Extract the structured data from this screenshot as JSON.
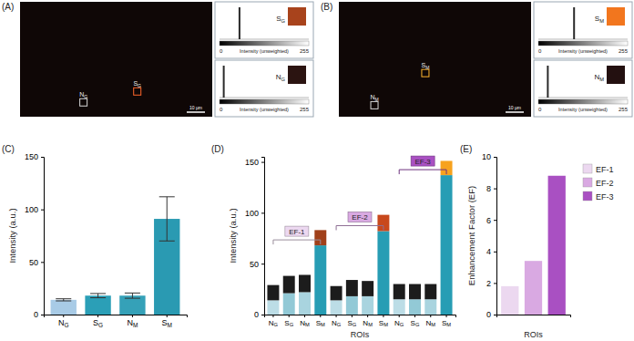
{
  "image_panels": [
    {
      "label": "(A)",
      "scale_bar": "10 µm",
      "histogram_axis": {
        "title": "Intensity (unweighted)",
        "xlim": [
          0,
          255
        ],
        "xticks": [
          0,
          255
        ]
      },
      "rois": [
        {
          "name": "SG",
          "color": "#a8431c",
          "peak": 57
        },
        {
          "name": "NG",
          "color": "#2b1411",
          "peak": 12
        }
      ]
    },
    {
      "label": "(B)",
      "scale_bar": "10 µm",
      "histogram_axis": {
        "title": "Intensity (unweighted)",
        "xlim": [
          0,
          255
        ],
        "xticks": [
          0,
          255
        ]
      },
      "rois": [
        {
          "name": "SM",
          "color": "#f2761e",
          "peak": 102
        },
        {
          "name": "NM",
          "color": "#231010",
          "peak": 27
        }
      ]
    }
  ],
  "chart_data": [
    {
      "type": "bar",
      "title": "(C)",
      "y_label": "Intensity (a.u.)",
      "categories": [
        "NG",
        "SG",
        "NM",
        "SM"
      ],
      "values": [
        14,
        18,
        18,
        91
      ],
      "errors": [
        1,
        2,
        2.5,
        21
      ],
      "colors": [
        "#a8cbe6",
        "#2b9fb7",
        "#35a1b8",
        "#2a9ab2"
      ],
      "ylim": [
        0,
        150
      ],
      "yticks": [
        0,
        50,
        100,
        150
      ]
    },
    {
      "type": "bar",
      "title": "(D)",
      "x_label": "ROIs",
      "y_label": "Intensity (a.u.)",
      "stacked": true,
      "categories": [
        "NG",
        "SG",
        "NM",
        "SM",
        "NG",
        "SG",
        "NM",
        "SM",
        "NG",
        "SG",
        "NM",
        "SM"
      ],
      "series": [
        {
          "values": [
            14,
            21,
            22,
            68,
            14,
            18,
            18,
            82,
            15,
            15,
            15,
            137
          ],
          "colors": [
            "#bcdde6",
            "#92c9d6",
            "#a9d4df",
            "#279db4",
            "#bcdde6",
            "#92c9d6",
            "#a9d4df",
            "#279db4",
            "#bcdde6",
            "#92c9d6",
            "#a9d4df",
            "#279db4"
          ]
        },
        {
          "values": [
            15,
            17,
            17,
            15,
            14,
            16,
            15,
            16,
            15,
            15,
            15,
            14
          ],
          "colors": [
            "#1c1c1c",
            "#1c1c1c",
            "#1c1c1c",
            "#a0401a",
            "#1c1c1c",
            "#1c1c1c",
            "#1c1c1c",
            "#c8481c",
            "#1c1c1c",
            "#1c1c1c",
            "#1c1c1c",
            "#f7a21e"
          ]
        }
      ],
      "annotations": [
        {
          "text": "EF-1",
          "categories": [
            0,
            3
          ],
          "color": "#ecd8f0"
        },
        {
          "text": "EF-2",
          "categories": [
            4,
            7
          ],
          "color": "#d9a9e2"
        },
        {
          "text": "EF-3",
          "categories": [
            8,
            11
          ],
          "color": "#a950c2"
        }
      ],
      "ylim": [
        0,
        155
      ],
      "yticks": [
        0,
        50,
        100,
        150
      ]
    },
    {
      "type": "bar",
      "title": "(E)",
      "x_label": "ROIs",
      "y_label": "Enhancement Factor (EF)",
      "categories": [
        "EF-1",
        "EF-2",
        "EF-3"
      ],
      "values": [
        1.8,
        3.4,
        8.8
      ],
      "colors": [
        "#ecd8f0",
        "#d9a9e2",
        "#a950c2"
      ],
      "ylim": [
        0,
        10
      ],
      "yticks": [
        0,
        2,
        4,
        6,
        8,
        10
      ],
      "legend": "right",
      "tick_labels": "y"
    }
  ]
}
